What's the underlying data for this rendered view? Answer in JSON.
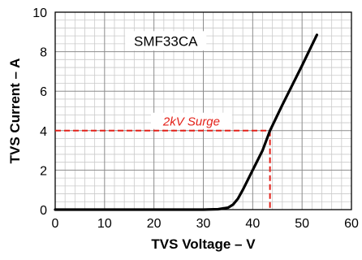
{
  "chart_data": {
    "type": "line",
    "xlabel": "TVS Voltage – V",
    "ylabel": "TVS Current – A",
    "xlim": [
      0,
      60
    ],
    "ylim": [
      0,
      10
    ],
    "x_ticks": [
      "0",
      "10",
      "20",
      "30",
      "40",
      "50",
      "60"
    ],
    "y_ticks": [
      "0",
      "2",
      "4",
      "6",
      "8",
      "10"
    ],
    "grid": true,
    "minor_grid": true,
    "series": [
      {
        "name": "SMF33CA",
        "color": "#000000",
        "points": [
          [
            0,
            0
          ],
          [
            30,
            0
          ],
          [
            33,
            0.02
          ],
          [
            35,
            0.1
          ],
          [
            36,
            0.25
          ],
          [
            37,
            0.55
          ],
          [
            38,
            1.0
          ],
          [
            39,
            1.5
          ],
          [
            40,
            2.0
          ],
          [
            42,
            3.0
          ],
          [
            43.5,
            4.0
          ],
          [
            46,
            5.3
          ],
          [
            48,
            6.3
          ],
          [
            50,
            7.3
          ],
          [
            53,
            8.85
          ]
        ]
      }
    ],
    "annotations": [
      {
        "text": "2kV Surge",
        "x": 43.5,
        "y": 4,
        "color": "#e32119",
        "style": "dashed"
      }
    ]
  }
}
